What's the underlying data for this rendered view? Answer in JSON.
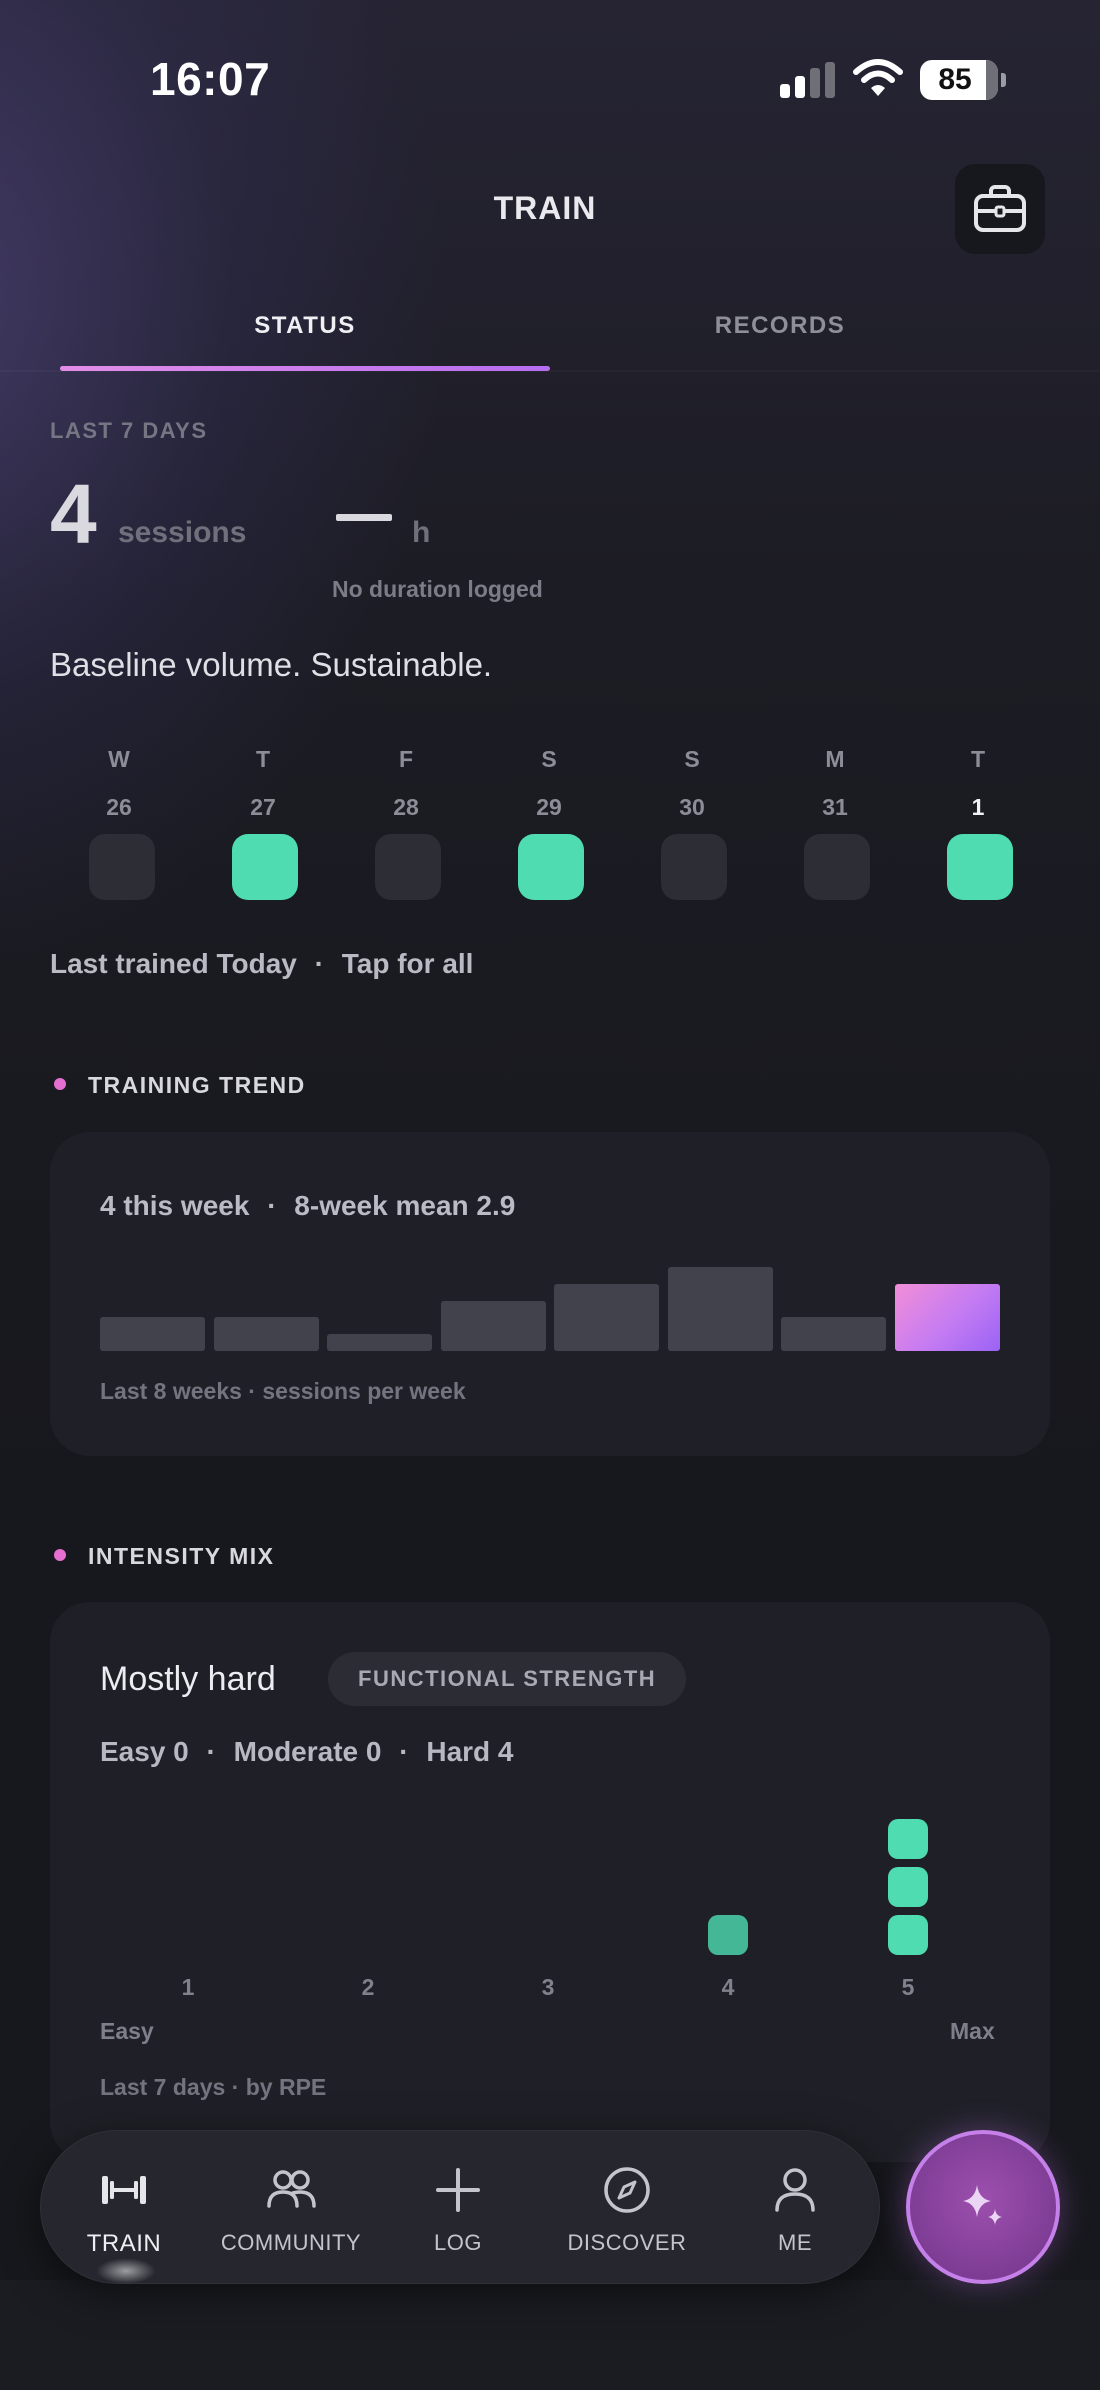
{
  "status_bar": {
    "time": "16:07",
    "battery": "85"
  },
  "header": {
    "title": "TRAIN",
    "tool_icon": "briefcase-icon"
  },
  "tabs": [
    {
      "label": "STATUS",
      "active": true
    },
    {
      "label": "RECORDS",
      "active": false
    }
  ],
  "summary": {
    "period_label": "LAST 7 DAYS",
    "sessions_value": "4",
    "sessions_unit": "sessions",
    "duration_value": "—",
    "duration_unit": "h",
    "duration_note": "No duration logged",
    "verdict": "Baseline volume. Sustainable."
  },
  "week": [
    {
      "letter": "W",
      "date": "26",
      "trained": false
    },
    {
      "letter": "T",
      "date": "27",
      "trained": true
    },
    {
      "letter": "F",
      "date": "28",
      "trained": false
    },
    {
      "letter": "S",
      "date": "29",
      "trained": true
    },
    {
      "letter": "S",
      "date": "30",
      "trained": false
    },
    {
      "letter": "M",
      "date": "31",
      "trained": false
    },
    {
      "letter": "T",
      "date": "1",
      "trained": true,
      "today": true
    }
  ],
  "last_trained": "Last trained Today",
  "tap_all": "Tap for all",
  "trend": {
    "section_title": "TRAINING TREND",
    "this_week": "4 this week",
    "mean": "8-week mean 2.9",
    "footnote": "Last 8 weeks · sessions per week",
    "accent": "#c47bf2"
  },
  "chart_data": {
    "type": "bar",
    "title": "",
    "categories": [
      "",
      "",
      "",
      "",
      "",
      "",
      "",
      ""
    ],
    "values": [
      2,
      2,
      1,
      3,
      4,
      5,
      2,
      4
    ],
    "ylim": [
      0,
      5
    ]
  },
  "intensity": {
    "section_title": "INTENSITY MIX",
    "headline": "Mostly hard",
    "tag": "FUNCTIONAL STRENGTH",
    "easy": "Easy 0",
    "moderate": "Moderate 0",
    "hard": "Hard 4",
    "rpe_levels": [
      "1",
      "2",
      "3",
      "4",
      "5"
    ],
    "rpe_counts": [
      0,
      0,
      0,
      1,
      3
    ],
    "scale_min": "Easy",
    "scale_max": "Max",
    "footnote": "Last 7 days · by RPE",
    "color": "#4fdcb0"
  },
  "nav": [
    {
      "label": "TRAIN",
      "icon": "dumbbell-icon",
      "active": true
    },
    {
      "label": "COMMUNITY",
      "icon": "people-icon",
      "active": false
    },
    {
      "label": "LOG",
      "icon": "plus-icon",
      "active": false
    },
    {
      "label": "DISCOVER",
      "icon": "compass-icon",
      "active": false
    },
    {
      "label": "ME",
      "icon": "person-icon",
      "active": false
    }
  ],
  "fab_icon": "sparkle-icon"
}
